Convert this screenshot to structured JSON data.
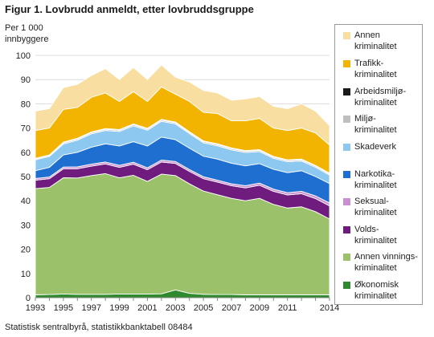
{
  "figure": {
    "title": "Figur 1.  Lovbrudd anmeldt, etter lovbruddsgruppe",
    "ylabel_line1": "Per 1 000",
    "ylabel_line2": "innbyggere",
    "source": "Statistisk sentralbyrå, statistikkbanktabell 08484"
  },
  "legend": [
    {
      "line1": "Annen",
      "line2": "kriminalitet",
      "color": "#f8dea0"
    },
    {
      "line1": "Trafikk-",
      "line2": "kriminalitet",
      "color": "#f2b400"
    },
    {
      "line1": "Arbeidsmiljø-",
      "line2": "kriminalitet",
      "color": "#1a1a1a"
    },
    {
      "line1": "Miljø-",
      "line2": "kriminalitet",
      "color": "#bfbfbf"
    },
    {
      "line1": "Skadeverk",
      "line2": "",
      "color": "#8dc8f0"
    },
    {
      "line1": "Narkotika-",
      "line2": "kriminalitet",
      "color": "#1f6fd1"
    },
    {
      "line1": "Seksual-",
      "line2": "kriminalitet",
      "color": "#c98fd1"
    },
    {
      "line1": "Volds-",
      "line2": "kriminalitet",
      "color": "#6f1c7e"
    },
    {
      "line1": "Annen vinnings-",
      "line2": "kriminalitet",
      "color": "#9bc26a"
    },
    {
      "line1": "Økonomisk",
      "line2": "kriminalitet",
      "color": "#2f8a2f"
    }
  ],
  "chart_data": {
    "type": "area",
    "stacked": true,
    "ylim": [
      0,
      100
    ],
    "yticks": [
      0,
      10,
      20,
      30,
      40,
      50,
      60,
      70,
      80,
      90,
      100
    ],
    "x": [
      1993,
      1994,
      1995,
      1996,
      1997,
      1998,
      1999,
      2000,
      2001,
      2002,
      2003,
      2004,
      2005,
      2006,
      2007,
      2008,
      2009,
      2010,
      2011,
      2012,
      2013,
      2014
    ],
    "xticks": [
      "1993",
      "1995",
      "1997",
      "1999",
      "2001",
      "2003",
      "2005",
      "2007",
      "2009",
      "2011",
      "2014"
    ],
    "xtick_years": [
      1993,
      1995,
      1997,
      1999,
      2001,
      2003,
      2005,
      2007,
      2009,
      2011,
      2014
    ],
    "grid": "horizontal",
    "series": [
      {
        "name": "Økonomisk kriminalitet",
        "color": "#2f8a2f",
        "values": [
          1.2,
          1.3,
          1.5,
          1.4,
          1.4,
          1.4,
          1.5,
          1.5,
          1.5,
          1.6,
          3.2,
          1.8,
          1.4,
          1.3,
          1.3,
          1.2,
          1.2,
          1.2,
          1.2,
          1.2,
          1.2,
          1.2
        ]
      },
      {
        "name": "Annen vinnings- kriminalitet",
        "color": "#9bc26a",
        "values": [
          43.8,
          44.2,
          48.0,
          48.0,
          49.0,
          49.8,
          48.0,
          49.0,
          46.5,
          49.4,
          47.2,
          45.2,
          42.6,
          41.2,
          39.7,
          38.8,
          39.8,
          37.3,
          35.8,
          36.3,
          34.3,
          31.3
        ]
      },
      {
        "name": "Volds- kriminalitet",
        "color": "#6f1c7e",
        "values": [
          3.5,
          3.6,
          3.7,
          3.8,
          3.9,
          4.0,
          4.3,
          4.6,
          4.8,
          5.0,
          5.0,
          5.1,
          5.1,
          5.2,
          5.2,
          5.3,
          5.4,
          5.4,
          5.4,
          5.4,
          5.4,
          5.4
        ]
      },
      {
        "name": "Seksual- kriminalitet",
        "color": "#c98fd1",
        "values": [
          0.7,
          0.7,
          0.7,
          0.8,
          0.8,
          0.8,
          0.8,
          0.8,
          0.8,
          0.8,
          0.8,
          0.8,
          0.8,
          0.8,
          0.8,
          0.9,
          0.9,
          0.9,
          0.9,
          1.0,
          1.1,
          1.2
        ]
      },
      {
        "name": "Narkotika- kriminalitet",
        "color": "#1f6fd1",
        "values": [
          3.2,
          4.0,
          5.0,
          6.0,
          7.0,
          7.5,
          8.0,
          8.5,
          9.0,
          9.5,
          9.0,
          8.8,
          8.5,
          8.7,
          8.5,
          8.2,
          8.0,
          8.2,
          8.3,
          8.5,
          8.0,
          8.0
        ]
      },
      {
        "name": "Skadeverk",
        "color": "#8dc8f0",
        "values": [
          4.5,
          4.5,
          4.5,
          5.0,
          5.5,
          5.5,
          6.0,
          6.5,
          6.5,
          6.5,
          6.5,
          6.0,
          5.5,
          5.5,
          5.5,
          5.5,
          5.0,
          4.5,
          4.5,
          4.0,
          3.8,
          3.5
        ]
      },
      {
        "name": "Miljø- kriminalitet",
        "color": "#bfbfbf",
        "values": [
          0.4,
          0.4,
          0.5,
          0.5,
          0.5,
          0.5,
          0.5,
          0.5,
          0.5,
          0.5,
          0.5,
          0.5,
          0.5,
          0.5,
          0.5,
          0.5,
          0.5,
          0.5,
          0.5,
          0.5,
          0.5,
          0.5
        ]
      },
      {
        "name": "Arbeidsmiljø- kriminalitet",
        "color": "#1a1a1a",
        "values": [
          0.2,
          0.2,
          0.3,
          0.3,
          0.3,
          0.3,
          0.3,
          0.3,
          0.3,
          0.3,
          0.3,
          0.3,
          0.3,
          0.3,
          0.3,
          0.3,
          0.3,
          0.3,
          0.3,
          0.3,
          0.3,
          0.3
        ]
      },
      {
        "name": "Trafikk- kriminalitet",
        "color": "#f2b400",
        "values": [
          11.5,
          11.1,
          13.5,
          12.7,
          14.3,
          14.7,
          11.6,
          13.3,
          11.1,
          13.4,
          11.5,
          12.5,
          11.8,
          12.5,
          11.2,
          12.3,
          12.9,
          11.7,
          12.1,
          12.8,
          13.4,
          11.6
        ]
      },
      {
        "name": "Annen kriminalitet",
        "color": "#f8dea0",
        "values": [
          8.0,
          8.0,
          9.0,
          9.5,
          9.0,
          10.0,
          9.0,
          10.0,
          9.0,
          9.0,
          7.0,
          8.0,
          9.0,
          8.5,
          8.5,
          9.0,
          9.0,
          9.0,
          9.0,
          10.0,
          9.0,
          8.0
        ]
      }
    ]
  }
}
